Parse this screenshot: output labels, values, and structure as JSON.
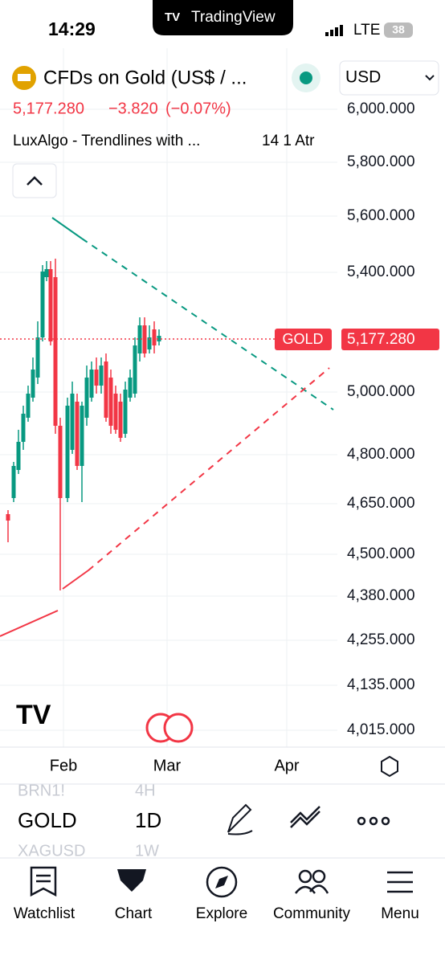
{
  "status_bar": {
    "time": "14:29",
    "network": "LTE",
    "battery": "38"
  },
  "banner": "TradingView",
  "symbol": {
    "name": "CFDs on Gold (US$ / ...",
    "price": "5,177.280",
    "change": "−3.820",
    "change_pct": "(−0.07%)",
    "currency": "USD"
  },
  "indicator": {
    "name": "LuxAlgo - Trendlines with ...",
    "params": "14 1 Atr"
  },
  "price_axis": [
    "6,000.000",
    "5,800.000",
    "5,600.000",
    "5,400.000",
    "5,000.000",
    "4,800.000",
    "4,650.000",
    "4,500.000",
    "4,380.000",
    "4,255.000",
    "4,135.000",
    "4,015.000"
  ],
  "price_tag": {
    "label": "GOLD",
    "price": "5,177.280"
  },
  "time_axis": [
    "Feb",
    "Mar",
    "Apr"
  ],
  "watchlist": {
    "prev": "BRN1!",
    "current": "GOLD",
    "next": "XAGUSD"
  },
  "interval": {
    "prev": "4H",
    "current": "1D",
    "next": "1W"
  },
  "nav": [
    "Watchlist",
    "Chart",
    "Explore",
    "Community",
    "Menu"
  ]
}
